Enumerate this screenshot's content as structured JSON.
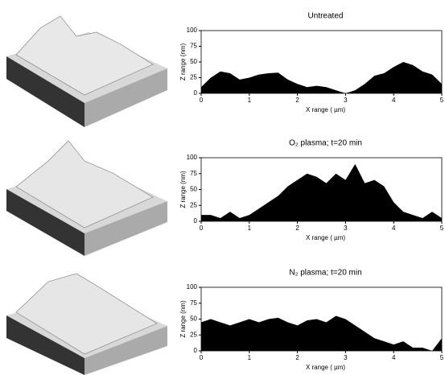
{
  "chart_data": [
    {
      "type": "area",
      "title": "Untreated",
      "xlabel": "X range ( µm)",
      "ylabel": "Z range (nm)",
      "color": "#000000",
      "x": [
        0,
        0.2,
        0.4,
        0.6,
        0.8,
        1,
        1.2,
        1.4,
        1.6,
        1.8,
        2,
        2.2,
        2.4,
        2.6,
        2.8,
        3,
        3.2,
        3.4,
        3.6,
        3.8,
        4,
        4.2,
        4.4,
        4.6,
        4.8,
        5
      ],
      "values": [
        10,
        25,
        35,
        32,
        22,
        25,
        30,
        32,
        33,
        22,
        15,
        10,
        12,
        10,
        5,
        0,
        5,
        15,
        28,
        32,
        42,
        50,
        45,
        35,
        30,
        15
      ],
      "xlim": [
        0,
        5
      ],
      "ylim": [
        0,
        100
      ],
      "xticks": [
        0,
        1,
        2,
        3,
        4,
        5
      ],
      "yticks": [
        0,
        25,
        50,
        75,
        100
      ]
    },
    {
      "type": "area",
      "title": "O₂ plasma; t=20 min",
      "xlabel": "X range ( µm)",
      "ylabel": "Z range (nm)",
      "color": "#000000",
      "x": [
        0,
        0.2,
        0.4,
        0.6,
        0.8,
        1,
        1.2,
        1.4,
        1.6,
        1.8,
        2,
        2.2,
        2.4,
        2.6,
        2.8,
        3,
        3.2,
        3.4,
        3.6,
        3.8,
        4,
        4.2,
        4.4,
        4.6,
        4.8,
        5
      ],
      "values": [
        10,
        10,
        5,
        15,
        5,
        10,
        20,
        30,
        40,
        55,
        65,
        75,
        70,
        60,
        75,
        65,
        90,
        60,
        65,
        55,
        30,
        15,
        10,
        5,
        15,
        5
      ],
      "xlim": [
        0,
        5
      ],
      "ylim": [
        0,
        100
      ],
      "xticks": [
        0,
        1,
        2,
        3,
        4,
        5
      ],
      "yticks": [
        0,
        25,
        50,
        75,
        100
      ]
    },
    {
      "type": "area",
      "title": "N₂ plasma; t=20 min",
      "xlabel": "X range ( µm)",
      "ylabel": "Z range (nm)",
      "color": "#000000",
      "x": [
        0,
        0.2,
        0.4,
        0.6,
        0.8,
        1,
        1.2,
        1.4,
        1.6,
        1.8,
        2,
        2.2,
        2.4,
        2.6,
        2.8,
        3,
        3.2,
        3.4,
        3.6,
        3.8,
        4,
        4.2,
        4.4,
        4.6,
        4.8,
        5
      ],
      "values": [
        45,
        50,
        45,
        40,
        45,
        50,
        45,
        50,
        52,
        45,
        40,
        48,
        50,
        45,
        55,
        50,
        40,
        30,
        20,
        15,
        10,
        15,
        5,
        5,
        0,
        20
      ],
      "xlim": [
        0,
        5
      ],
      "ylim": [
        0,
        100
      ],
      "xticks": [
        0,
        1,
        2,
        3,
        4,
        5
      ],
      "yticks": [
        0,
        25,
        50,
        75,
        100
      ]
    }
  ]
}
